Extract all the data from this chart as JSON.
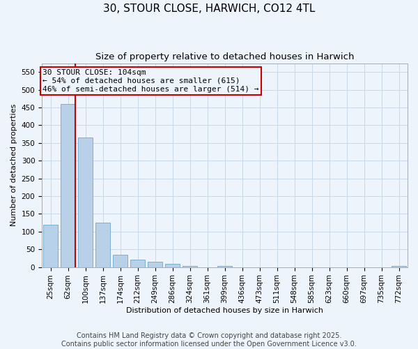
{
  "title": "30, STOUR CLOSE, HARWICH, CO12 4TL",
  "subtitle": "Size of property relative to detached houses in Harwich",
  "xlabel": "Distribution of detached houses by size in Harwich",
  "ylabel": "Number of detached properties",
  "bins": [
    "25sqm",
    "62sqm",
    "100sqm",
    "137sqm",
    "174sqm",
    "212sqm",
    "249sqm",
    "286sqm",
    "324sqm",
    "361sqm",
    "399sqm",
    "436sqm",
    "473sqm",
    "511sqm",
    "548sqm",
    "585sqm",
    "623sqm",
    "660sqm",
    "697sqm",
    "735sqm",
    "772sqm"
  ],
  "bar_heights": [
    120,
    460,
    365,
    125,
    35,
    20,
    15,
    10,
    3,
    0,
    3,
    0,
    0,
    0,
    0,
    0,
    0,
    0,
    0,
    0,
    3
  ],
  "bar_color": "#b8d0e8",
  "bar_edge_color": "#7aafd4",
  "grid_color": "#c8d8ea",
  "bg_color": "#eef4fb",
  "vline_color": "#cc0000",
  "annotation_text": "30 STOUR CLOSE: 104sqm\n← 54% of detached houses are smaller (615)\n46% of semi-detached houses are larger (514) →",
  "footer": "Contains HM Land Registry data © Crown copyright and database right 2025.\nContains public sector information licensed under the Open Government Licence v3.0.",
  "ylim": [
    0,
    575
  ],
  "yticks": [
    0,
    50,
    100,
    150,
    200,
    250,
    300,
    350,
    400,
    450,
    500,
    550
  ],
  "title_fontsize": 11,
  "subtitle_fontsize": 9.5,
  "axis_fontsize": 8,
  "tick_fontsize": 7.5,
  "footer_fontsize": 7,
  "ann_fontsize": 8
}
